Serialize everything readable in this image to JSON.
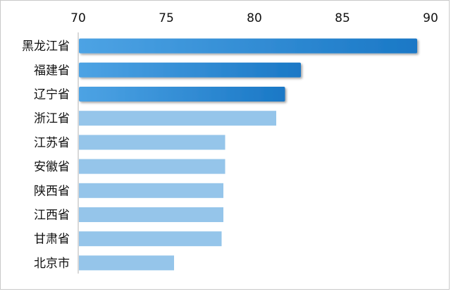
{
  "chart_data": {
    "type": "bar",
    "orientation": "horizontal",
    "categories": [
      "黑龙江省",
      "福建省",
      "辽宁省",
      "浙江省",
      "江苏省",
      "安徽省",
      "陕西省",
      "江西省",
      "甘肃省",
      "北京市"
    ],
    "values": [
      89.2,
      82.6,
      81.7,
      81.2,
      78.3,
      78.3,
      78.2,
      78.2,
      78.1,
      75.4
    ],
    "highlight_count": 3,
    "xlim": [
      70,
      90
    ],
    "xticks": [
      "70",
      "75",
      "80",
      "85",
      "90"
    ],
    "xaxis_position": "top",
    "grid": false,
    "legend": "none",
    "title": "",
    "xlabel": "",
    "ylabel": ""
  },
  "colors": {
    "highlight_dark": "#1a78c6",
    "highlight_light": "#4da3e4",
    "normal": "#95c5ea",
    "axis": "#b0b0b0"
  }
}
